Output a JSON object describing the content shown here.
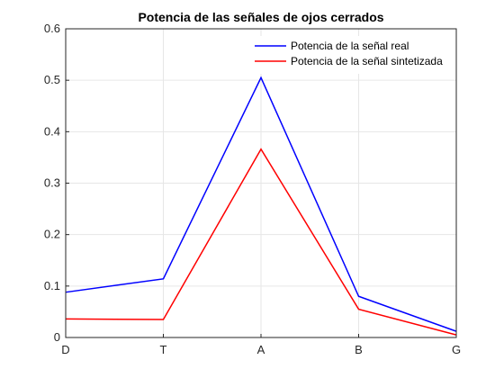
{
  "chart_data": {
    "type": "line",
    "title": "Potencia de las señales de ojos cerrados",
    "xlabel": "",
    "ylabel": "",
    "categories": [
      "D",
      "T",
      "A",
      "B",
      "G"
    ],
    "ylim": [
      0,
      0.6
    ],
    "yticks": [
      "0",
      "0.1",
      "0.2",
      "0.3",
      "0.4",
      "0.5",
      "0.6"
    ],
    "grid": true,
    "legend_position": "top-right",
    "series": [
      {
        "name": "Potencia de la señal real",
        "color": "#0000ff",
        "values": [
          0.088,
          0.114,
          0.505,
          0.08,
          0.012
        ]
      },
      {
        "name": "Potencia de la señal sintetizada",
        "color": "#ff0000",
        "values": [
          0.036,
          0.035,
          0.366,
          0.055,
          0.005
        ]
      }
    ]
  }
}
